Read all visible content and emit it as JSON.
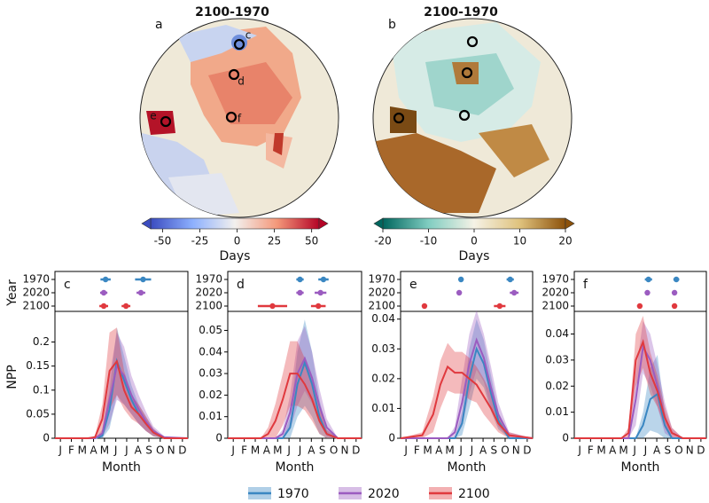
{
  "chart_data": [
    {
      "type": "map",
      "panel": "a",
      "title": "2100-1970",
      "markers": [
        "c",
        "d",
        "e",
        "f"
      ],
      "colorbar": {
        "label": "Days",
        "lim": [
          -58,
          55
        ],
        "ticks": [
          -50,
          -25,
          0,
          25,
          50
        ],
        "colors": [
          "#3b4cc0",
          "#8db0fe",
          "#f2f0ee",
          "#f4987a",
          "#b40426"
        ]
      }
    },
    {
      "type": "map",
      "panel": "b",
      "title": "2100-1970",
      "colorbar": {
        "label": "Days",
        "lim": [
          -20,
          20
        ],
        "ticks": [
          -20,
          -10,
          0,
          10,
          20
        ],
        "colors": [
          "#01665e",
          "#80cdc1",
          "#f5f2e6",
          "#dfc27d",
          "#8c510a"
        ]
      }
    },
    {
      "type": "line",
      "panel": "c",
      "xlabel": "Month",
      "ylabel": "NPP",
      "timing_label": "Year",
      "xlim": [
        0,
        365
      ],
      "xticks": [
        {
          "value": 15,
          "label": "J"
        },
        {
          "value": 45,
          "label": "F"
        },
        {
          "value": 75,
          "label": "M"
        },
        {
          "value": 106,
          "label": "A"
        },
        {
          "value": 136,
          "label": "M"
        },
        {
          "value": 167,
          "label": "J"
        },
        {
          "value": 197,
          "label": "J"
        },
        {
          "value": 228,
          "label": "A"
        },
        {
          "value": 258,
          "label": "S"
        },
        {
          "value": 289,
          "label": "O"
        },
        {
          "value": 319,
          "label": "N"
        },
        {
          "value": 350,
          "label": "D"
        }
      ],
      "ylim": [
        0,
        0.26
      ],
      "yticks": [
        0,
        0.05,
        0.1,
        0.15,
        0.2
      ],
      "x": [
        0,
        60,
        90,
        110,
        130,
        150,
        170,
        190,
        210,
        230,
        250,
        270,
        300,
        365
      ],
      "series": [
        {
          "name": "1970",
          "color": "#3a87c2",
          "values": [
            0,
            0,
            0,
            0,
            0.005,
            0.06,
            0.16,
            0.12,
            0.08,
            0.05,
            0.03,
            0.012,
            0,
            0
          ],
          "band": [
            0,
            0,
            0,
            0,
            0.005,
            0.04,
            0.07,
            0.05,
            0.03,
            0.02,
            0.015,
            0.008,
            0,
            0
          ],
          "timing": [
            [
              139,
              14
            ],
            [
              242,
              22
            ]
          ]
        },
        {
          "name": "2020",
          "color": "#9b5cc0",
          "values": [
            0,
            0,
            0,
            0,
            0.01,
            0.08,
            0.15,
            0.13,
            0.09,
            0.06,
            0.035,
            0.015,
            0.002,
            0
          ],
          "band": [
            0,
            0,
            0,
            0,
            0.008,
            0.05,
            0.07,
            0.06,
            0.04,
            0.03,
            0.02,
            0.01,
            0.002,
            0
          ],
          "timing": [
            [
              134,
              10
            ],
            [
              236,
              12
            ]
          ]
        },
        {
          "name": "2100",
          "color": "#e0393e",
          "values": [
            0,
            0,
            0,
            0.002,
            0.04,
            0.14,
            0.16,
            0.1,
            0.065,
            0.05,
            0.03,
            0.012,
            0,
            0
          ],
          "band": [
            0,
            0,
            0,
            0.003,
            0.03,
            0.08,
            0.07,
            0.04,
            0.025,
            0.02,
            0.015,
            0.008,
            0,
            0
          ],
          "timing": [
            [
              134,
              12
            ],
            [
              195,
              12
            ]
          ]
        }
      ]
    },
    {
      "type": "line",
      "panel": "d",
      "xlabel": "Month",
      "xlim": [
        0,
        365
      ],
      "xticks": [
        {
          "value": 15,
          "label": "J"
        },
        {
          "value": 45,
          "label": "F"
        },
        {
          "value": 75,
          "label": "M"
        },
        {
          "value": 106,
          "label": "A"
        },
        {
          "value": 136,
          "label": "M"
        },
        {
          "value": 167,
          "label": "J"
        },
        {
          "value": 197,
          "label": "J"
        },
        {
          "value": 228,
          "label": "A"
        },
        {
          "value": 258,
          "label": "S"
        },
        {
          "value": 289,
          "label": "O"
        },
        {
          "value": 319,
          "label": "N"
        },
        {
          "value": 350,
          "label": "D"
        }
      ],
      "ylim": [
        0,
        0.058
      ],
      "yticks": [
        0,
        0.01,
        0.02,
        0.03,
        0.04,
        0.05
      ],
      "x": [
        0,
        60,
        90,
        110,
        130,
        150,
        170,
        190,
        210,
        230,
        250,
        270,
        300,
        365
      ],
      "series": [
        {
          "name": "1970",
          "color": "#3a87c2",
          "values": [
            0,
            0,
            0,
            0,
            0,
            0,
            0.005,
            0.025,
            0.035,
            0.025,
            0.01,
            0.002,
            0,
            0
          ],
          "band": [
            0,
            0,
            0,
            0,
            0,
            0,
            0.005,
            0.015,
            0.02,
            0.015,
            0.008,
            0.002,
            0,
            0
          ],
          "timing": [
            [
              197,
              10
            ],
            [
              261,
              14
            ]
          ]
        },
        {
          "name": "2020",
          "color": "#9b5cc0",
          "values": [
            0,
            0,
            0,
            0,
            0,
            0.002,
            0.012,
            0.03,
            0.037,
            0.028,
            0.015,
            0.005,
            0,
            0
          ],
          "band": [
            0,
            0,
            0,
            0,
            0,
            0.002,
            0.008,
            0.015,
            0.015,
            0.012,
            0.008,
            0.004,
            0,
            0
          ],
          "timing": [
            [
              197,
              10
            ],
            [
              253,
              16
            ]
          ]
        },
        {
          "name": "2100",
          "color": "#e0393e",
          "values": [
            0,
            0,
            0,
            0.002,
            0.008,
            0.018,
            0.03,
            0.03,
            0.025,
            0.018,
            0.008,
            0.002,
            0,
            0
          ],
          "band": [
            0,
            0,
            0,
            0.003,
            0.008,
            0.012,
            0.015,
            0.015,
            0.012,
            0.01,
            0.006,
            0.002,
            0,
            0
          ],
          "timing": [
            [
              122,
              40
            ],
            [
              247,
              20
            ]
          ]
        }
      ]
    },
    {
      "type": "line",
      "panel": "e",
      "xlabel": "Month",
      "xlim": [
        0,
        365
      ],
      "xticks": [
        {
          "value": 15,
          "label": "J"
        },
        {
          "value": 45,
          "label": "F"
        },
        {
          "value": 75,
          "label": "M"
        },
        {
          "value": 106,
          "label": "A"
        },
        {
          "value": 136,
          "label": "M"
        },
        {
          "value": 167,
          "label": "J"
        },
        {
          "value": 197,
          "label": "J"
        },
        {
          "value": 228,
          "label": "A"
        },
        {
          "value": 258,
          "label": "S"
        },
        {
          "value": 289,
          "label": "O"
        },
        {
          "value": 319,
          "label": "N"
        },
        {
          "value": 350,
          "label": "D"
        }
      ],
      "ylim": [
        0,
        0.042
      ],
      "yticks": [
        0,
        0.01,
        0.02,
        0.03,
        0.04
      ],
      "x": [
        0,
        60,
        90,
        110,
        130,
        150,
        170,
        190,
        210,
        230,
        250,
        270,
        300,
        365
      ],
      "series": [
        {
          "name": "1970",
          "color": "#3a87c2",
          "values": [
            0,
            0,
            0,
            0,
            0,
            0,
            0.005,
            0.02,
            0.03,
            0.025,
            0.015,
            0.006,
            0,
            0
          ],
          "band": [
            0,
            0,
            0,
            0,
            0,
            0,
            0.004,
            0.01,
            0.01,
            0.008,
            0.006,
            0.003,
            0,
            0
          ],
          "timing": [
            [
              167,
              6
            ],
            [
              303,
              10
            ]
          ]
        },
        {
          "name": "2020",
          "color": "#9b5cc0",
          "values": [
            0,
            0,
            0,
            0,
            0,
            0.002,
            0.012,
            0.025,
            0.033,
            0.027,
            0.017,
            0.008,
            0.001,
            0
          ],
          "band": [
            0,
            0,
            0,
            0,
            0,
            0.002,
            0.008,
            0.01,
            0.01,
            0.008,
            0.007,
            0.004,
            0.001,
            0
          ],
          "timing": [
            [
              162,
              6
            ],
            [
              314,
              12
            ]
          ]
        },
        {
          "name": "2100",
          "color": "#e0393e",
          "values": [
            0,
            0.001,
            0.008,
            0.018,
            0.024,
            0.022,
            0.022,
            0.02,
            0.018,
            0.014,
            0.01,
            0.005,
            0.001,
            0
          ],
          "band": [
            0,
            0.001,
            0.006,
            0.008,
            0.008,
            0.007,
            0.007,
            0.007,
            0.006,
            0.006,
            0.005,
            0.003,
            0.001,
            0
          ],
          "timing": [
            [
              66,
              6
            ],
            [
              274,
              16
            ]
          ]
        }
      ]
    },
    {
      "type": "line",
      "panel": "f",
      "xlabel": "Month",
      "xlim": [
        0,
        365
      ],
      "xticks": [
        {
          "value": 15,
          "label": "J"
        },
        {
          "value": 45,
          "label": "F"
        },
        {
          "value": 75,
          "label": "M"
        },
        {
          "value": 106,
          "label": "A"
        },
        {
          "value": 136,
          "label": "M"
        },
        {
          "value": 167,
          "label": "J"
        },
        {
          "value": 197,
          "label": "J"
        },
        {
          "value": 228,
          "label": "A"
        },
        {
          "value": 258,
          "label": "S"
        },
        {
          "value": 289,
          "label": "O"
        },
        {
          "value": 319,
          "label": "N"
        },
        {
          "value": 350,
          "label": "D"
        }
      ],
      "ylim": [
        0,
        0.048
      ],
      "yticks": [
        0,
        0.01,
        0.02,
        0.03,
        0.04
      ],
      "x": [
        0,
        60,
        90,
        110,
        130,
        150,
        170,
        190,
        210,
        230,
        250,
        270,
        300,
        365
      ],
      "series": [
        {
          "name": "1970",
          "color": "#3a87c2",
          "values": [
            0,
            0,
            0,
            0,
            0,
            0,
            0,
            0.005,
            0.015,
            0.017,
            0.005,
            0,
            0,
            0
          ],
          "band": [
            0,
            0,
            0,
            0,
            0,
            0,
            0,
            0.005,
            0.012,
            0.015,
            0.005,
            0,
            0,
            0
          ],
          "timing": [
            [
              205,
              10
            ],
            [
              282,
              8
            ]
          ]
        },
        {
          "name": "2020",
          "color": "#9b5cc0",
          "values": [
            0,
            0,
            0,
            0,
            0,
            0,
            0.015,
            0.035,
            0.03,
            0.02,
            0.008,
            0.002,
            0,
            0
          ],
          "band": [
            0,
            0,
            0,
            0,
            0,
            0,
            0.01,
            0.01,
            0.01,
            0.008,
            0.006,
            0.002,
            0,
            0
          ],
          "timing": [
            [
              202,
              6
            ],
            [
              277,
              6
            ]
          ]
        },
        {
          "name": "2100",
          "color": "#e0393e",
          "values": [
            0,
            0,
            0,
            0,
            0,
            0.002,
            0.03,
            0.037,
            0.025,
            0.018,
            0.008,
            0.002,
            0,
            0
          ],
          "band": [
            0,
            0,
            0,
            0,
            0,
            0.002,
            0.01,
            0.01,
            0.008,
            0.006,
            0.004,
            0.002,
            0,
            0
          ],
          "timing": [
            [
              181,
              6
            ],
            [
              277,
              6
            ]
          ]
        }
      ]
    }
  ]
}
